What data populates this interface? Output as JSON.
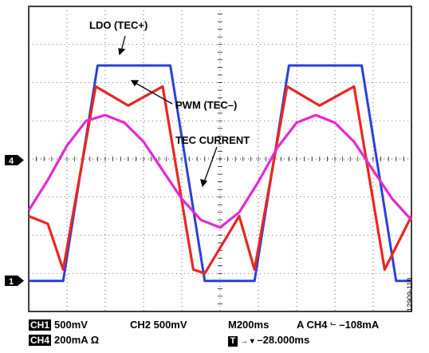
{
  "chart_data": {
    "type": "line",
    "x_range": [
      0,
      10
    ],
    "y_range": [
      -4,
      4
    ],
    "grid": true,
    "series": [
      {
        "name": "LDO (TEC+)",
        "color": "#2a3fd8",
        "points": [
          [
            0,
            -3.2
          ],
          [
            0.9,
            -3.2
          ],
          [
            1.8,
            2.45
          ],
          [
            3.7,
            2.45
          ],
          [
            4.6,
            -3.2
          ],
          [
            5.9,
            -3.2
          ],
          [
            6.8,
            2.45
          ],
          [
            8.7,
            2.45
          ],
          [
            9.6,
            -3.2
          ],
          [
            10,
            -3.2
          ]
        ]
      },
      {
        "name": "PWM (TEC–)",
        "color": "#e8281e",
        "points": [
          [
            0,
            -1.5
          ],
          [
            0.5,
            -1.7
          ],
          [
            0.9,
            -2.9
          ],
          [
            1.75,
            1.9
          ],
          [
            2.6,
            1.4
          ],
          [
            3.5,
            1.9
          ],
          [
            4.3,
            -2.9
          ],
          [
            4.6,
            -3.0
          ],
          [
            5.5,
            -1.5
          ],
          [
            5.9,
            -2.9
          ],
          [
            6.75,
            1.9
          ],
          [
            7.6,
            1.4
          ],
          [
            8.5,
            1.9
          ],
          [
            9.3,
            -2.9
          ],
          [
            10,
            -1.5
          ]
        ]
      },
      {
        "name": "TEC CURRENT",
        "color": "#e22ad4",
        "points": [
          [
            0,
            -1.35
          ],
          [
            0.5,
            -0.55
          ],
          [
            1.0,
            0.35
          ],
          [
            1.5,
            1.0
          ],
          [
            2.0,
            1.15
          ],
          [
            2.5,
            0.95
          ],
          [
            3.0,
            0.45
          ],
          [
            3.5,
            -0.3
          ],
          [
            4.0,
            -1.05
          ],
          [
            4.5,
            -1.6
          ],
          [
            5.0,
            -1.8
          ],
          [
            5.5,
            -1.4
          ],
          [
            6.0,
            -0.6
          ],
          [
            6.5,
            0.3
          ],
          [
            7.0,
            0.95
          ],
          [
            7.5,
            1.15
          ],
          [
            8.0,
            0.95
          ],
          [
            8.5,
            0.45
          ],
          [
            9.0,
            -0.3
          ],
          [
            9.5,
            -1.05
          ],
          [
            10.0,
            -1.6
          ]
        ]
      }
    ],
    "annotations": [
      "LDO (TEC+)",
      "PWM (TEC–)",
      "TEC CURRENT"
    ],
    "channel_markers": [
      "4",
      "1"
    ]
  },
  "readout": {
    "ch1_badge": "CH1",
    "ch1_scale": "500mV",
    "ch2_text": "CH2 500mV",
    "timebase": "M200ms",
    "trigger": "A  CH4",
    "trigger_symbol": "⌐",
    "trigger_level": "–108mA",
    "ch4_badge": "CH4",
    "ch4_scale": "200mA Ω",
    "t_badge": "T",
    "t_arrow": "→ ▾",
    "t_offset": "–28.000ms"
  },
  "figure_id": "12909-118"
}
